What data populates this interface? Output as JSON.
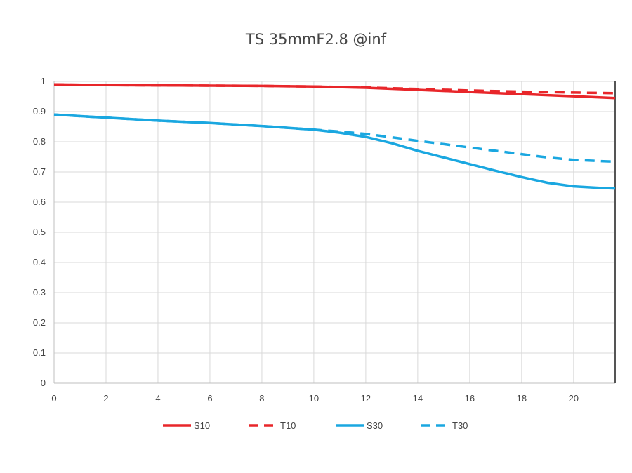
{
  "chart_data": {
    "type": "line",
    "title": "TS 35mmF2.8 @inf",
    "xlabel": "",
    "ylabel": "",
    "xlim": [
      0,
      21.6
    ],
    "ylim": [
      0,
      1
    ],
    "xticks": [
      0,
      2,
      4,
      6,
      8,
      10,
      12,
      14,
      16,
      18,
      20
    ],
    "yticks": [
      0,
      0.1,
      0.2,
      0.3,
      0.4,
      0.5,
      0.6,
      0.7,
      0.8,
      0.9,
      1
    ],
    "grid": true,
    "legend_position": "bottom",
    "series": [
      {
        "name": "S10",
        "color": "#e8262a",
        "dash": "solid",
        "x": [
          0,
          2,
          4,
          6,
          8,
          10,
          12,
          14,
          16,
          18,
          20,
          21.6
        ],
        "y": [
          0.99,
          0.988,
          0.987,
          0.986,
          0.985,
          0.983,
          0.979,
          0.972,
          0.965,
          0.958,
          0.951,
          0.945
        ]
      },
      {
        "name": "T10",
        "color": "#e8262a",
        "dash": "dashed",
        "x": [
          0,
          2,
          4,
          6,
          8,
          10,
          12,
          14,
          16,
          18,
          20,
          21.6
        ],
        "y": [
          0.99,
          0.988,
          0.987,
          0.986,
          0.985,
          0.983,
          0.98,
          0.975,
          0.97,
          0.966,
          0.963,
          0.961
        ]
      },
      {
        "name": "S30",
        "color": "#1aa7e0",
        "dash": "solid",
        "x": [
          0,
          2,
          4,
          6,
          8,
          10,
          11,
          12,
          13,
          14,
          15,
          16,
          17,
          18,
          19,
          20,
          21,
          21.6
        ],
        "y": [
          0.89,
          0.88,
          0.87,
          0.862,
          0.852,
          0.84,
          0.83,
          0.816,
          0.795,
          0.77,
          0.748,
          0.726,
          0.704,
          0.683,
          0.664,
          0.652,
          0.647,
          0.645
        ]
      },
      {
        "name": "T30",
        "color": "#1aa7e0",
        "dash": "dashed",
        "x": [
          0,
          2,
          4,
          6,
          8,
          10,
          11,
          12,
          13,
          14,
          15,
          16,
          17,
          18,
          19,
          20,
          21,
          21.6
        ],
        "y": [
          0.89,
          0.88,
          0.87,
          0.862,
          0.852,
          0.84,
          0.834,
          0.826,
          0.815,
          0.803,
          0.792,
          0.781,
          0.77,
          0.759,
          0.748,
          0.74,
          0.736,
          0.734
        ]
      }
    ]
  }
}
